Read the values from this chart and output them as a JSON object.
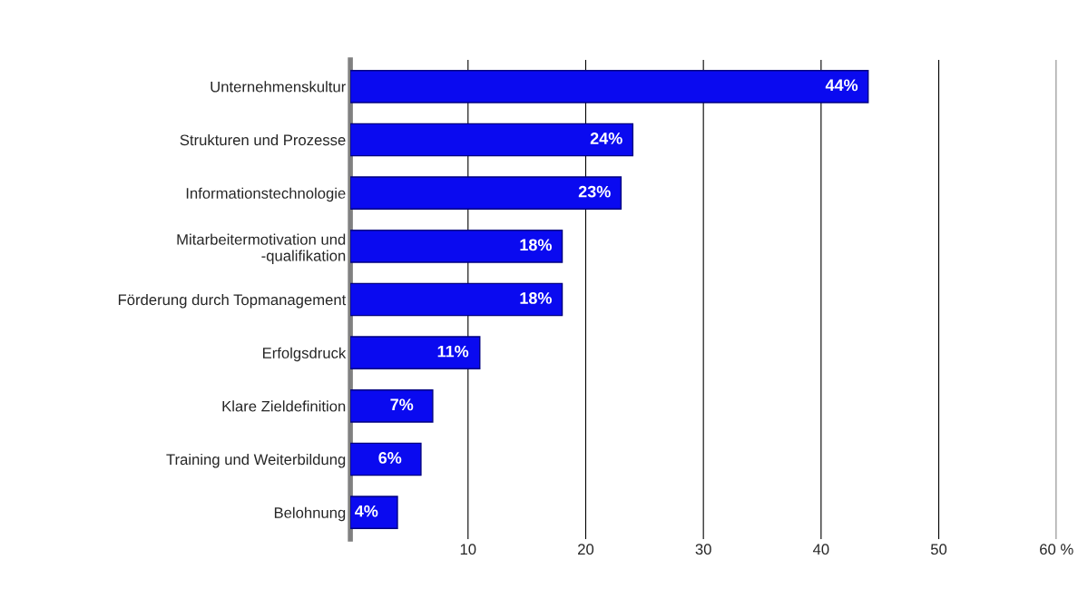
{
  "chart_data": {
    "type": "bar",
    "orientation": "horizontal",
    "categories": [
      "Unternehmenskultur",
      "Strukturen und Prozesse",
      "Informationstechnologie",
      "Mitarbeitermotivation und\n-qualifikation",
      "Förderung durch Topmanagement",
      "Erfolgsdruck",
      "Klare Zieldefinition",
      "Training und Weiterbildung",
      "Belohnung"
    ],
    "values": [
      44,
      24,
      23,
      18,
      18,
      11,
      7,
      6,
      4
    ],
    "value_labels": [
      "44%",
      "24%",
      "23%",
      "18%",
      "18%",
      "11%",
      "7%",
      "6%",
      "4%"
    ],
    "color": "#0a0af0",
    "xlim": [
      0,
      60
    ],
    "xticks": [
      10,
      20,
      30,
      40,
      50,
      {
        "value": 60,
        "label": "60 %"
      }
    ],
    "grid": "x",
    "legend": false
  }
}
